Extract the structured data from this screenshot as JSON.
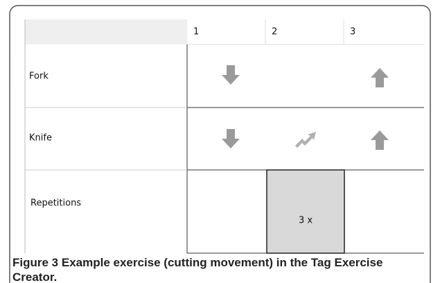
{
  "table": {
    "columns": [
      "1",
      "2",
      "3"
    ],
    "rows": [
      {
        "label": "Fork"
      },
      {
        "label": "Knife"
      },
      {
        "label": "Repetitions",
        "cells": [
          "",
          "3 x",
          ""
        ]
      }
    ]
  },
  "caption": {
    "label": "Figure 3",
    "text": "Example exercise (cutting movement) in the Tag Exercise Creator."
  }
}
